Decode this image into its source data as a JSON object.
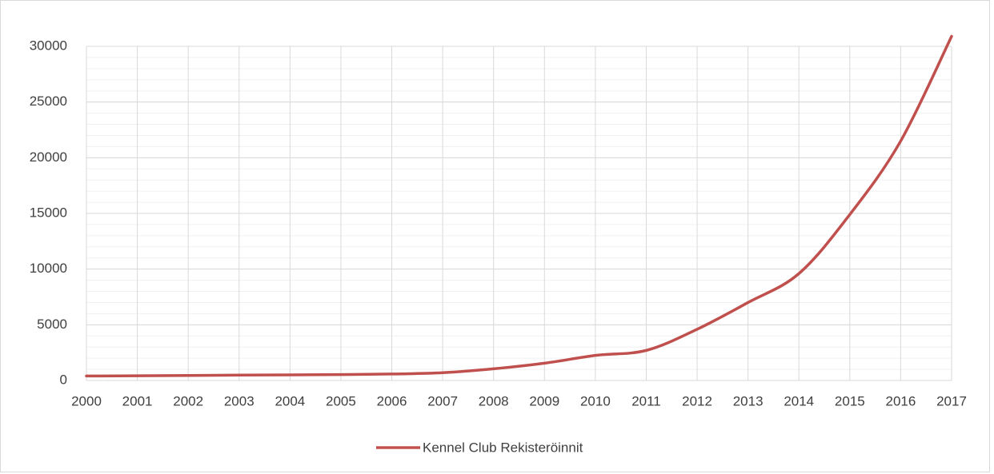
{
  "chart_data": {
    "type": "line",
    "x": [
      2000,
      2001,
      2002,
      2003,
      2004,
      2005,
      2006,
      2007,
      2008,
      2009,
      2010,
      2011,
      2012,
      2013,
      2014,
      2015,
      2016,
      2017
    ],
    "series": [
      {
        "name": "Kennel Club Rekisteröinnit",
        "color": "#c0504d",
        "values": [
          400,
          420,
          450,
          480,
          500,
          530,
          580,
          700,
          1050,
          1550,
          2250,
          2700,
          4600,
          7000,
          9600,
          14900,
          21500,
          30900
        ]
      }
    ],
    "xlim": [
      2000,
      2017
    ],
    "xticks": [
      2000,
      2001,
      2002,
      2003,
      2004,
      2005,
      2006,
      2007,
      2008,
      2009,
      2010,
      2011,
      2012,
      2013,
      2014,
      2015,
      2016,
      2017
    ],
    "ylim": [
      0,
      30000
    ],
    "yticks": [
      0,
      5000,
      10000,
      15000,
      20000,
      25000,
      30000
    ],
    "grid": true,
    "minor_grid_step": 1000,
    "smooth": true,
    "legend": "bottom"
  }
}
